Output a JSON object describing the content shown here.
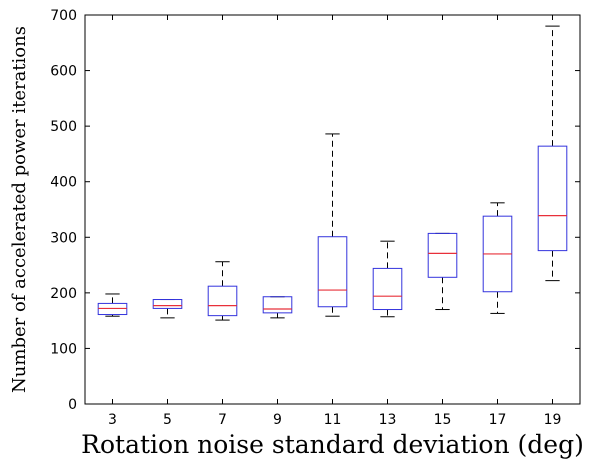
{
  "chart_data": {
    "type": "box",
    "title": "",
    "xlabel": "Rotation noise standard deviation (deg)",
    "ylabel": "Number of accelerated power iterations",
    "ylim": [
      0,
      700
    ],
    "yticks": [
      0,
      100,
      200,
      300,
      400,
      500,
      600,
      700
    ],
    "categories": [
      "3",
      "5",
      "7",
      "9",
      "11",
      "13",
      "15",
      "17",
      "19"
    ],
    "boxes": [
      {
        "whisker_low": 158,
        "q1": 161,
        "median": 172,
        "q3": 181,
        "whisker_high": 198
      },
      {
        "whisker_low": 155,
        "q1": 172,
        "median": 177,
        "q3": 188,
        "whisker_high": 188
      },
      {
        "whisker_low": 151,
        "q1": 159,
        "median": 177,
        "q3": 212,
        "whisker_high": 256
      },
      {
        "whisker_low": 155,
        "q1": 164,
        "median": 171,
        "q3": 193,
        "whisker_high": 193
      },
      {
        "whisker_low": 158,
        "q1": 175,
        "median": 205,
        "q3": 301,
        "whisker_high": 486
      },
      {
        "whisker_low": 157,
        "q1": 170,
        "median": 194,
        "q3": 244,
        "whisker_high": 293
      },
      {
        "whisker_low": 170,
        "q1": 228,
        "median": 271,
        "q3": 307,
        "whisker_high": 307
      },
      {
        "whisker_low": 163,
        "q1": 202,
        "median": 270,
        "q3": 338,
        "whisker_high": 362
      },
      {
        "whisker_low": 222,
        "q1": 276,
        "median": 339,
        "q3": 464,
        "whisker_high": 680
      }
    ],
    "colors": {
      "box": "#3333dd",
      "median": "#e8303a",
      "whisker": "#000000",
      "axis": "#000000"
    },
    "grid": false,
    "legend": "none"
  }
}
